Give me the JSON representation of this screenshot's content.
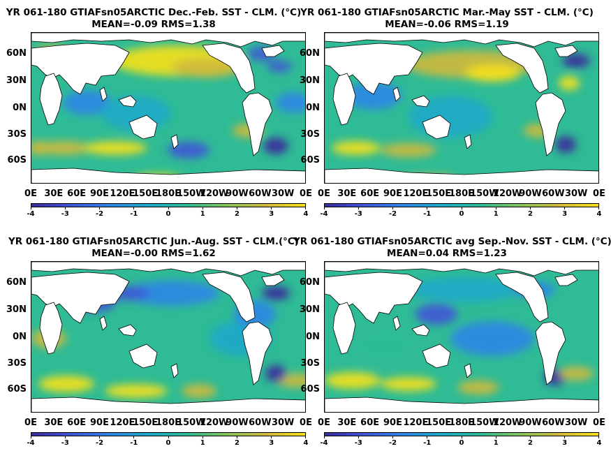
{
  "colormap": {
    "stops": [
      "#3b2a9c",
      "#4054d6",
      "#2f86e6",
      "#1fa9c9",
      "#2fbb95",
      "#86c25a",
      "#d0b93c",
      "#f7e11b"
    ],
    "land_color": "#ffffff",
    "ticks": [
      "-4",
      "-3",
      "-2",
      "-1",
      "0",
      "1",
      "2",
      "3",
      "4"
    ]
  },
  "axes": {
    "y_ticks": [
      "60N",
      "30N",
      "0N",
      "30S",
      "60S"
    ],
    "x_ticks": [
      "0E",
      "30E",
      "60E",
      "90E",
      "120E",
      "150E",
      "180E",
      "150W",
      "120W",
      "90W",
      "60W",
      "30W",
      "0E"
    ]
  },
  "panels": [
    {
      "title": "YR 061-180 GTIAFsn05ARCTIC  Dec.-Feb. SST - CLM. (°C)",
      "stats": "MEAN=-0.09   RMS=1.38"
    },
    {
      "title": "YR 061-180 GTIAFsn05ARCTIC Mar.-May SST - CLM. (°C)",
      "stats": "MEAN=-0.06   RMS=1.19"
    },
    {
      "title": "YR 061-180 GTIAFsn05ARCTIC Jun.-Aug. SST - CLM.(°C)",
      "stats": "MEAN=-0.00   RMS=1.62"
    },
    {
      "title": "YR 061-180 GTIAFsn05ARCTIC avg Sep.-Nov. SST - CLM. (°C)",
      "stats": "MEAN=0.04   RMS=1.23"
    }
  ]
}
